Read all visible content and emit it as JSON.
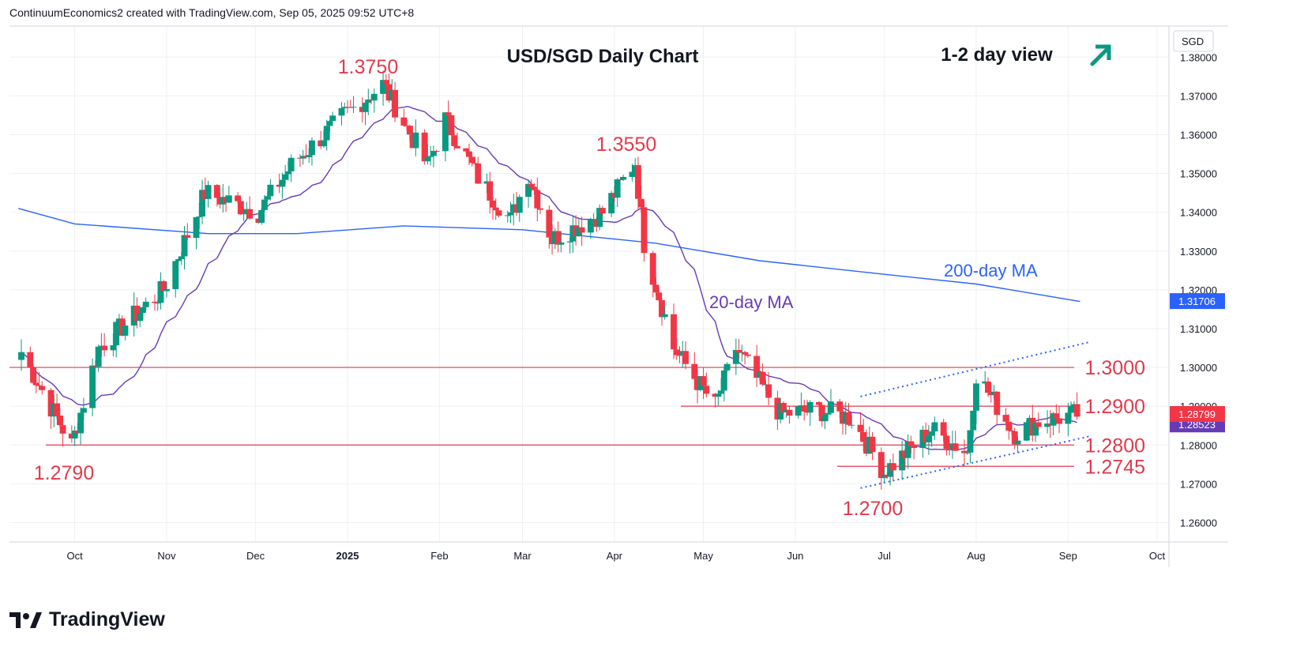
{
  "header_text": "ContinuumEconomics2 created with TradingView.com, Sep 05, 2025 09:52 UTC+8",
  "brand": "TradingView",
  "colors": {
    "up": "#089981",
    "down": "#f23645",
    "ma20": "#673ab7",
    "ma200": "#2962ff",
    "level": "#e23a4c",
    "channel": "#2962ff",
    "arrow": "#089981",
    "grid": "#eef0f3"
  },
  "chart_data": {
    "type": "candlestick",
    "title": "USD/SGD Daily Chart",
    "view_label": "1-2 day view",
    "view_icon": "arrow-up-right-icon",
    "currency": "SGD",
    "ylim": [
      1.255,
      1.388
    ],
    "y_ticks": [
      "1.38000",
      "1.37000",
      "1.36000",
      "1.35000",
      "1.34000",
      "1.33000",
      "1.32000",
      "1.31000",
      "1.30000",
      "1.29000",
      "1.28000",
      "1.27000",
      "1.26000"
    ],
    "x_months": [
      "Oct",
      "Nov",
      "Dec",
      "2025",
      "Feb",
      "Mar",
      "Apr",
      "May",
      "Jun",
      "Jul",
      "Aug",
      "Sep",
      "Oct"
    ],
    "last_price": "1.28799",
    "ma20_value": "1.28523",
    "ma200_value": "1.31706",
    "ma20_label": "20-day MA",
    "ma200_label": "200-day MA",
    "levels": [
      {
        "label": "1.3000",
        "value": 1.3
      },
      {
        "label": "1.2900",
        "value": 1.29
      },
      {
        "label": "1.2800",
        "value": 1.28
      },
      {
        "label": "1.2745",
        "value": 1.2745
      }
    ],
    "annotations": [
      {
        "label": "1.3750",
        "value": 1.375
      },
      {
        "label": "1.3550",
        "value": 1.355
      },
      {
        "label": "1.2790",
        "value": 1.279
      },
      {
        "label": "1.2700",
        "value": 1.27
      }
    ],
    "key_points": [
      [
        "2024-09-13",
        1.304
      ],
      [
        "2024-09-30",
        1.28
      ],
      [
        "2024-10-09",
        1.305
      ],
      [
        "2024-10-31",
        1.32
      ],
      [
        "2024-11-14",
        1.345
      ],
      [
        "2024-12-02",
        1.34
      ],
      [
        "2024-12-13",
        1.352
      ],
      [
        "2024-12-31",
        1.365
      ],
      [
        "2025-01-13",
        1.373
      ],
      [
        "2025-01-28",
        1.352
      ],
      [
        "2025-02-03",
        1.364
      ],
      [
        "2025-02-14",
        1.349
      ],
      [
        "2025-02-25",
        1.338
      ],
      [
        "2025-03-03",
        1.35
      ],
      [
        "2025-03-11",
        1.333
      ],
      [
        "2025-03-28",
        1.34
      ],
      [
        "2025-04-08",
        1.353
      ],
      [
        "2025-04-11",
        1.332
      ],
      [
        "2025-04-21",
        1.305
      ],
      [
        "2025-05-05",
        1.29
      ],
      [
        "2025-05-12",
        1.305
      ],
      [
        "2025-05-27",
        1.288
      ],
      [
        "2025-06-09",
        1.289
      ],
      [
        "2025-06-20",
        1.287
      ],
      [
        "2025-07-01",
        1.273
      ],
      [
        "2025-07-17",
        1.284
      ],
      [
        "2025-07-29",
        1.278
      ],
      [
        "2025-08-01",
        1.2985
      ],
      [
        "2025-08-14",
        1.283
      ],
      [
        "2025-08-22",
        1.286
      ],
      [
        "2025-09-04",
        1.288
      ]
    ],
    "ma200_points": [
      [
        "2024-09-12",
        1.341
      ],
      [
        "2024-10-01",
        1.337
      ],
      [
        "2024-11-15",
        1.3345
      ],
      [
        "2024-12-15",
        1.3345
      ],
      [
        "2025-01-20",
        1.3365
      ],
      [
        "2025-03-01",
        1.3355
      ],
      [
        "2025-04-15",
        1.332
      ],
      [
        "2025-05-20",
        1.3275
      ],
      [
        "2025-07-01",
        1.324
      ],
      [
        "2025-08-01",
        1.3215
      ],
      [
        "2025-09-05",
        1.317
      ]
    ]
  }
}
